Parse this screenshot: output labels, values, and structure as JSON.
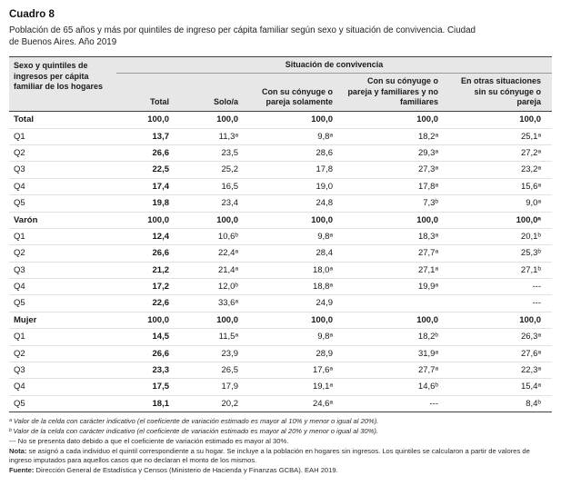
{
  "title": "Cuadro 8",
  "subtitle": "Población de 65 años y más por quintiles de ingreso per cápita familiar según sexo y situación de convivencia. Ciudad de Buenos Aires. Año 2019",
  "colors": {
    "header_bg": "#e7e7e7",
    "rule_dark": "#3f3f3f",
    "row_divider": "#e1e1e1"
  },
  "table": {
    "stub_header": "Sexo y quintiles de ingresos per cápita familiar de los hogares",
    "group_header": "Situación de convivencia",
    "columns": [
      "Total",
      "Solo/a",
      "Con su cónyuge o pareja solamente",
      "Con su cónyuge o pareja y familiares y no familiares",
      "En otras situaciones sin su cónyuge o pareja"
    ],
    "rows": [
      {
        "label": "Total",
        "group": true,
        "values": [
          "100,0",
          "100,0",
          "100,0",
          "100,0",
          "100,0"
        ]
      },
      {
        "label": "Q1",
        "group": false,
        "values": [
          "13,7",
          "11,3ᵃ",
          "9,8ᵃ",
          "18,2ᵃ",
          "25,1ᵃ"
        ]
      },
      {
        "label": "Q2",
        "group": false,
        "values": [
          "26,6",
          "23,5",
          "28,6",
          "29,3ᵃ",
          "27,2ᵃ"
        ]
      },
      {
        "label": "Q3",
        "group": false,
        "values": [
          "22,5",
          "25,2",
          "17,8",
          "27,3ᵃ",
          "23,2ᵃ"
        ]
      },
      {
        "label": "Q4",
        "group": false,
        "values": [
          "17,4",
          "16,5",
          "19,0",
          "17,8ᵃ",
          "15,6ᵃ"
        ]
      },
      {
        "label": "Q5",
        "group": false,
        "values": [
          "19,8",
          "23,4",
          "24,8",
          "7,3ᵇ",
          "9,0ᵃ"
        ]
      },
      {
        "label": "Varón",
        "group": true,
        "values": [
          "100,0",
          "100,0",
          "100,0",
          "100,0",
          "100,0ᵃ"
        ]
      },
      {
        "label": "Q1",
        "group": false,
        "values": [
          "12,4",
          "10,6ᵇ",
          "9,8ᵃ",
          "18,3ᵃ",
          "20,1ᵇ"
        ]
      },
      {
        "label": "Q2",
        "group": false,
        "values": [
          "26,6",
          "22,4ᵃ",
          "28,4",
          "27,7ᵃ",
          "25,3ᵇ"
        ]
      },
      {
        "label": "Q3",
        "group": false,
        "values": [
          "21,2",
          "21,4ᵃ",
          "18,0ᵃ",
          "27,1ᵃ",
          "27,1ᵇ"
        ]
      },
      {
        "label": "Q4",
        "group": false,
        "values": [
          "17,2",
          "12,0ᵇ",
          "18,8ᵃ",
          "19,9ᵃ",
          "---"
        ]
      },
      {
        "label": "Q5",
        "group": false,
        "values": [
          "22,6",
          "33,6ᵃ",
          "24,9",
          "",
          "---"
        ]
      },
      {
        "label": "Mujer",
        "group": true,
        "values": [
          "100,0",
          "100,0",
          "100,0",
          "100,0",
          "100,0"
        ]
      },
      {
        "label": "Q1",
        "group": false,
        "values": [
          "14,5",
          "11,5ᵃ",
          "9,8ᵃ",
          "18,2ᵇ",
          "26,3ᵃ"
        ]
      },
      {
        "label": "Q2",
        "group": false,
        "values": [
          "26,6",
          "23,9",
          "28,9",
          "31,9ᵃ",
          "27,6ᵃ"
        ]
      },
      {
        "label": "Q3",
        "group": false,
        "values": [
          "23,3",
          "26,5",
          "17,6ᵃ",
          "27,7ᵃ",
          "22,3ᵃ"
        ]
      },
      {
        "label": "Q4",
        "group": false,
        "values": [
          "17,5",
          "17,9",
          "19,1ᵃ",
          "14,6ᵇ",
          "15,4ᵃ"
        ]
      },
      {
        "label": "Q5",
        "group": false,
        "values": [
          "18,1",
          "20,2",
          "24,6ᵃ",
          "---",
          "8,4ᵇ"
        ]
      }
    ]
  },
  "footnotes": {
    "fn_a_marker": "ᵃ",
    "fn_a_text": "Valor de la celda con carácter indicativo (el coeficiente de variación estimado es mayor al 10% y menor o igual al 20%).",
    "fn_b_marker": "ᵇ",
    "fn_b_text": "Valor de la celda con carácter indicativo (el coeficiente de variación estimado es mayor al 20% y menor o igual al 30%).",
    "fn_dash_marker": "---",
    "fn_dash_text": "No se presenta dato debido a que el coeficiente de variación estimado es mayor al 30%.",
    "nota_label": "Nota:",
    "nota_text": "se asignó a cada individuo el quintil correspondiente a su hogar. Se incluye a la población en hogares sin ingresos. Los quintiles se calcularon a partir de valores de ingreso imputados para aquellos casos que no declaran el monto de los mismos.",
    "fuente_label": "Fuente:",
    "fuente_text": "Dirección General de Estadística y Censos (Ministerio de Hacienda y Finanzas GCBA). EAH 2019."
  }
}
